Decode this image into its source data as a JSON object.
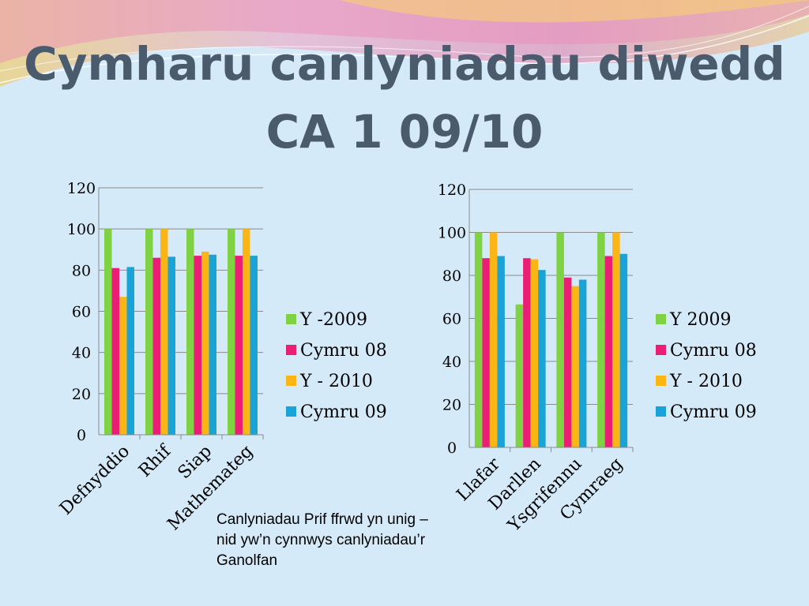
{
  "slide": {
    "title_line_1": "Cymharu canlyniadau diwedd",
    "title_line_2": "CA 1 09/10",
    "note": "Canlyniadau Prif ffrwd yn unig – nid yw’n cynnwys canlyniadau’r Ganolfan"
  },
  "colors": {
    "background": "#d5eaf8",
    "title": "#4b5b6e"
  },
  "chart_data": [
    {
      "type": "bar",
      "categories": [
        "Defnyddio",
        "Rhif",
        "Siap",
        "Mathemateg"
      ],
      "series": [
        {
          "name": "Y -2009",
          "color": "#7ed243",
          "values": [
            100,
            100,
            100,
            100
          ]
        },
        {
          "name": "Cymru 08",
          "color": "#ea1e74",
          "values": [
            81,
            86,
            87,
            87
          ]
        },
        {
          "name": "Y - 2010",
          "color": "#fbb616",
          "values": [
            67,
            100,
            89,
            100
          ]
        },
        {
          "name": "Cymru 09",
          "color": "#1aa3d6",
          "values": [
            81.5,
            86.5,
            87.5,
            87
          ]
        }
      ],
      "yticks": [
        "0",
        "20",
        "40",
        "60",
        "80",
        "100",
        "120"
      ],
      "ylim": [
        0,
        120
      ],
      "grid": true,
      "legend": "right"
    },
    {
      "type": "bar",
      "categories": [
        "Llafar",
        "Darllen",
        "Ysgrifennu",
        "Cymraeg"
      ],
      "series": [
        {
          "name": "Y 2009",
          "color": "#7ed243",
          "values": [
            100,
            66.5,
            100,
            100
          ]
        },
        {
          "name": "Cymru 08",
          "color": "#ea1e74",
          "values": [
            88,
            88,
            79,
            89
          ]
        },
        {
          "name": "Y - 2010",
          "color": "#fbb616",
          "values": [
            100,
            87.5,
            75,
            100
          ]
        },
        {
          "name": "Cymru 09",
          "color": "#1aa3d6",
          "values": [
            89,
            82.5,
            78,
            90
          ]
        }
      ],
      "yticks": [
        "0",
        "20",
        "40",
        "60",
        "80",
        "100",
        "120"
      ],
      "ylim": [
        0,
        120
      ],
      "grid": true,
      "legend": "right"
    }
  ]
}
